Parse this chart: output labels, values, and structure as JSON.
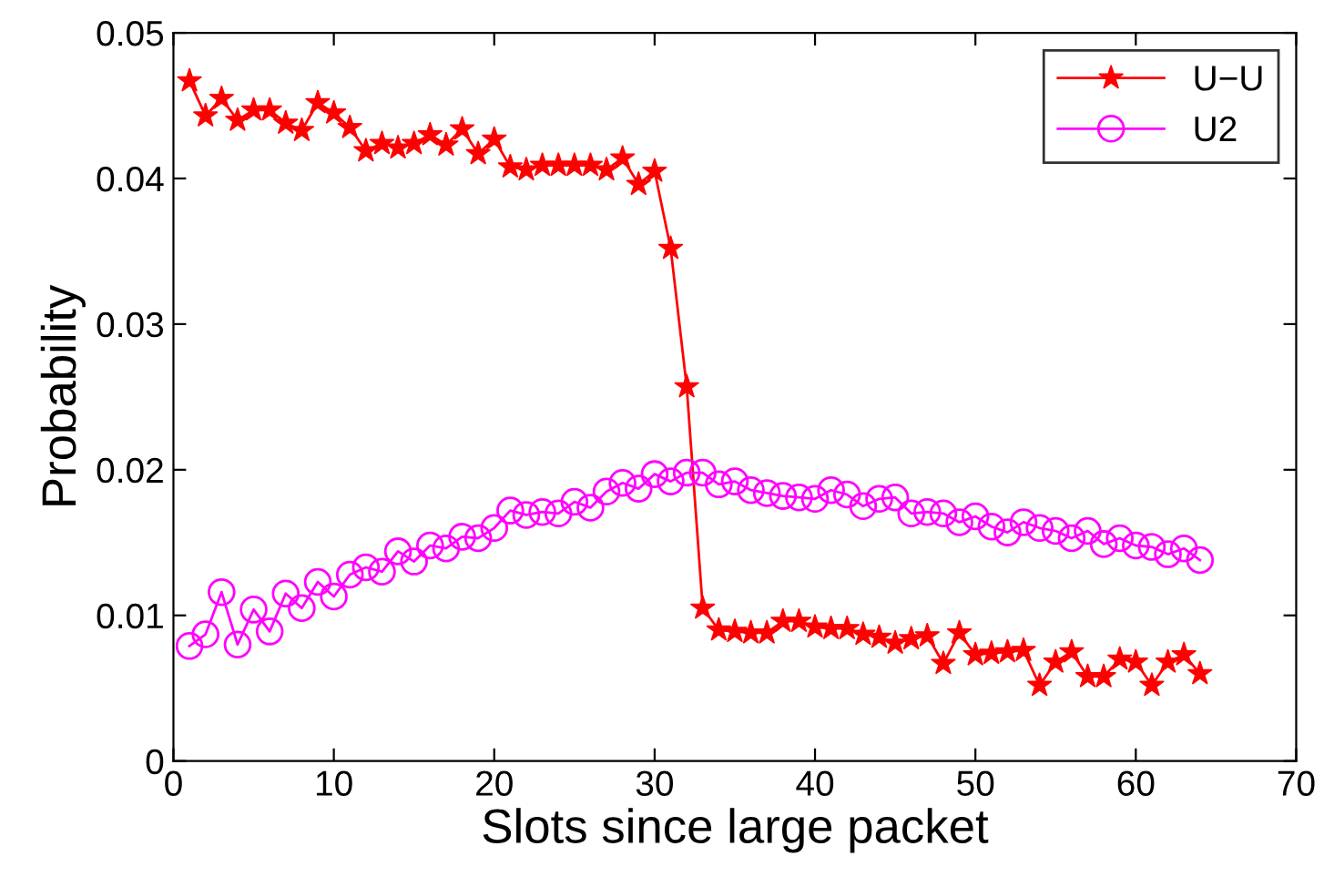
{
  "chart_data": {
    "type": "line",
    "xlabel": "Slots since large packet",
    "ylabel": "Probability",
    "x": [
      1,
      2,
      3,
      4,
      5,
      6,
      7,
      8,
      9,
      10,
      11,
      12,
      13,
      14,
      15,
      16,
      17,
      18,
      19,
      20,
      21,
      22,
      23,
      24,
      25,
      26,
      27,
      28,
      29,
      30,
      31,
      32,
      33,
      34,
      35,
      36,
      37,
      38,
      39,
      40,
      41,
      42,
      43,
      44,
      45,
      46,
      47,
      48,
      49,
      50,
      51,
      52,
      53,
      54,
      55,
      56,
      57,
      58,
      59,
      60,
      61,
      62,
      63,
      64
    ],
    "series": [
      {
        "name": "U−U",
        "color": "#ff0000",
        "marker": "star",
        "values": [
          0.0467,
          0.0443,
          0.0455,
          0.044,
          0.0447,
          0.0447,
          0.0438,
          0.0433,
          0.0452,
          0.0445,
          0.0435,
          0.0419,
          0.0424,
          0.0421,
          0.0424,
          0.043,
          0.0423,
          0.0434,
          0.0417,
          0.0427,
          0.0408,
          0.0406,
          0.0409,
          0.0409,
          0.0409,
          0.0409,
          0.0406,
          0.0414,
          0.0396,
          0.0405,
          0.0352,
          0.0257,
          0.0105,
          0.009,
          0.0089,
          0.0088,
          0.0088,
          0.0096,
          0.0096,
          0.0092,
          0.0091,
          0.0091,
          0.0087,
          0.0085,
          0.0081,
          0.0084,
          0.0086,
          0.0067,
          0.0088,
          0.0073,
          0.0074,
          0.0075,
          0.0076,
          0.0052,
          0.0068,
          0.0075,
          0.0058,
          0.0058,
          0.007,
          0.0068,
          0.0052,
          0.0068,
          0.0073,
          0.006
        ]
      },
      {
        "name": "U2",
        "color": "#ff00ff",
        "marker": "circle",
        "values": [
          0.0079,
          0.0087,
          0.0116,
          0.008,
          0.0104,
          0.0089,
          0.0115,
          0.0105,
          0.0123,
          0.0113,
          0.0128,
          0.0133,
          0.013,
          0.0144,
          0.0137,
          0.0148,
          0.0146,
          0.0154,
          0.0153,
          0.016,
          0.0172,
          0.0169,
          0.0171,
          0.017,
          0.0178,
          0.0174,
          0.0185,
          0.0191,
          0.0187,
          0.0197,
          0.0192,
          0.0198,
          0.0198,
          0.019,
          0.0192,
          0.0186,
          0.0184,
          0.0182,
          0.0181,
          0.018,
          0.0186,
          0.0183,
          0.0175,
          0.018,
          0.0181,
          0.017,
          0.0171,
          0.017,
          0.0164,
          0.0168,
          0.0161,
          0.0157,
          0.0164,
          0.016,
          0.0158,
          0.0153,
          0.0158,
          0.0149,
          0.0153,
          0.0148,
          0.0147,
          0.0142,
          0.0146,
          0.0138
        ]
      }
    ],
    "xlim": [
      0,
      70
    ],
    "xticks": [
      0,
      10,
      20,
      30,
      40,
      50,
      60,
      70
    ],
    "ylim": [
      0,
      0.05
    ],
    "yticks": [
      0,
      0.01,
      0.02,
      0.03,
      0.04,
      0.05
    ],
    "grid": false,
    "legend": "top right",
    "line_style": "solid"
  }
}
